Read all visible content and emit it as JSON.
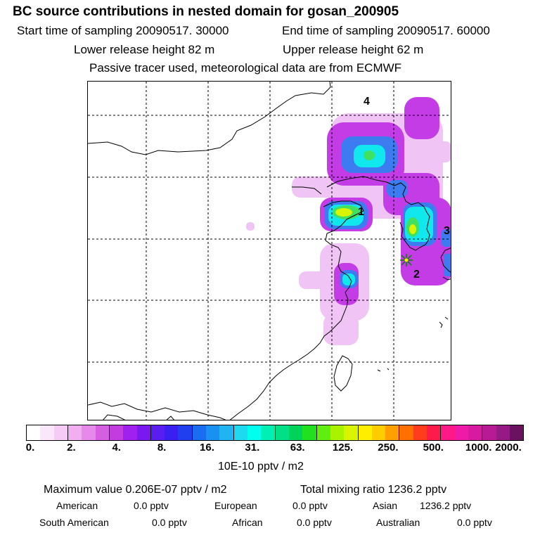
{
  "header": {
    "title": "BC  source contributions in nested domain for gosan_200905",
    "start_time": "Start time of sampling 20090517. 30000",
    "end_time": "End time of sampling 20090517. 60000",
    "lower_release": "Lower release height   82 m",
    "upper_release": "Upper release height   62 m",
    "tracer_note": "Passive tracer used, meteorological data are from ECMWF"
  },
  "map": {
    "labels": [
      "1",
      "2",
      "3",
      "4"
    ],
    "receptor_name": "gosan"
  },
  "colorbar": {
    "colors": [
      "#ffffff",
      "#fbe6fb",
      "#f6ccf6",
      "#f0b0f0",
      "#e58ae8",
      "#d65ee0",
      "#c23ce0",
      "#a020f0",
      "#7a18f0",
      "#5a1cf0",
      "#3a20f0",
      "#2040f0",
      "#1a6cf0",
      "#1a90f0",
      "#20b4f0",
      "#20d8f0",
      "#00ffee",
      "#00f0b4",
      "#00e086",
      "#00d25a",
      "#20e020",
      "#60ee10",
      "#a8f400",
      "#d8f400",
      "#ffee00",
      "#ffcc00",
      "#ffa000",
      "#ff7000",
      "#ff3c1c",
      "#ff1a4c",
      "#ff1888",
      "#f01aa8",
      "#d81aa0",
      "#b81a96",
      "#961a86",
      "#6a1260"
    ],
    "tick_labels": [
      "0.",
      "2.",
      "4.",
      "8.",
      "16.",
      "31.",
      "63.",
      "125.",
      "250.",
      "500.",
      "1000.",
      "2000."
    ],
    "units": "10E-10 pptv / m2"
  },
  "stats": {
    "maximum": "Maximum value  0.206E-07 pptv / m2",
    "total": "Total mixing ratio     1236.2 pptv",
    "row1": [
      {
        "name": "American",
        "value": "0.0 pptv"
      },
      {
        "name": "European",
        "value": "0.0 pptv"
      },
      {
        "name": "Asian",
        "value": "1236.2 pptv"
      }
    ],
    "row2": [
      {
        "name": "South American",
        "value": "0.0 pptv"
      },
      {
        "name": "African",
        "value": "0.0 pptv"
      },
      {
        "name": "Australian",
        "value": "0.0 pptv"
      }
    ]
  }
}
